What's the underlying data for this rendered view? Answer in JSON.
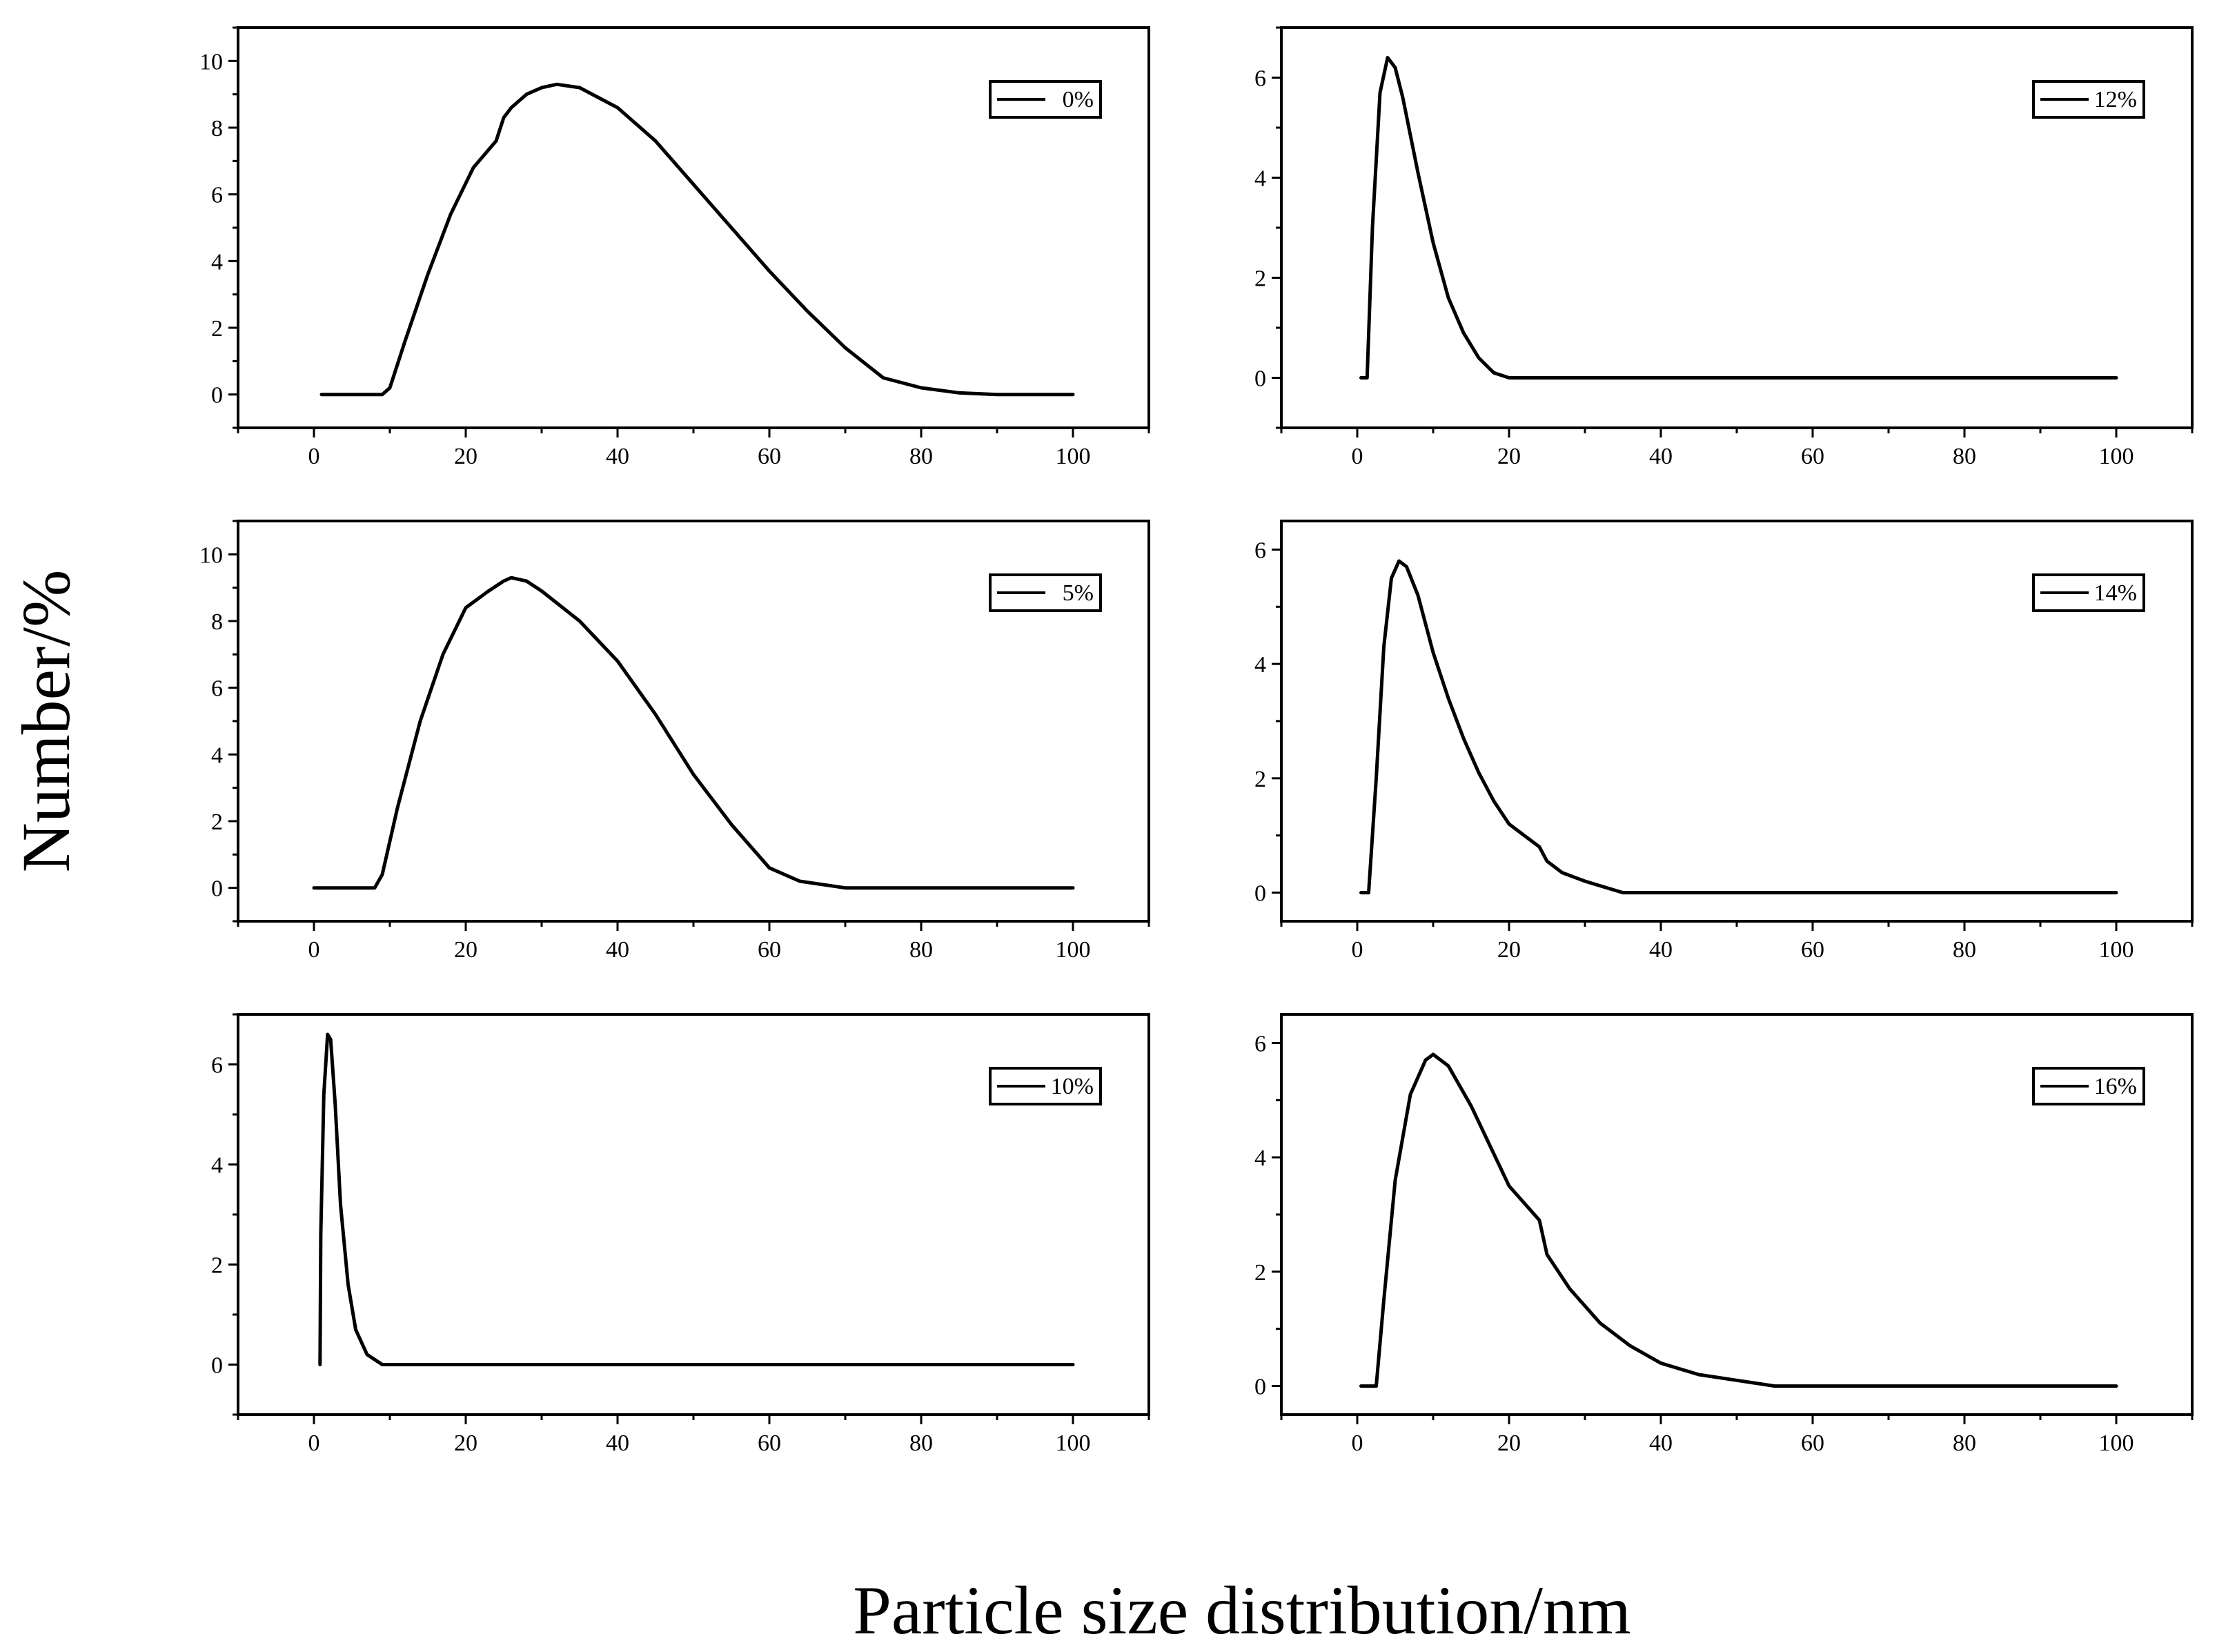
{
  "figure": {
    "ylabel": "Number/%",
    "xlabel": "Particle size distribution/nm"
  },
  "chart_data": [
    {
      "type": "line",
      "panel": "top-left",
      "legend": "0%",
      "legend_position": "top-right",
      "xlim": [
        -10,
        110
      ],
      "ylim": [
        -1,
        11
      ],
      "xticks": [
        0,
        20,
        40,
        60,
        80,
        100
      ],
      "yticks": [
        0,
        2,
        4,
        6,
        8,
        10
      ],
      "series": [
        {
          "name": "0%",
          "x": [
            1,
            9,
            10,
            12,
            15,
            18,
            21,
            24,
            25,
            26,
            28,
            30,
            32,
            35,
            40,
            45,
            50,
            55,
            60,
            65,
            70,
            75,
            80,
            85,
            90,
            100
          ],
          "values": [
            0,
            0,
            0.2,
            1.6,
            3.6,
            5.4,
            6.8,
            7.6,
            8.3,
            8.6,
            9.0,
            9.2,
            9.3,
            9.2,
            8.6,
            7.6,
            6.3,
            5.0,
            3.7,
            2.5,
            1.4,
            0.5,
            0.2,
            0.05,
            0,
            0
          ]
        }
      ]
    },
    {
      "type": "line",
      "panel": "top-right",
      "legend": "12%",
      "legend_position": "top-right",
      "xlim": [
        -10,
        110
      ],
      "ylim": [
        -1,
        7
      ],
      "xticks": [
        0,
        20,
        40,
        60,
        80,
        100
      ],
      "yticks": [
        0,
        2,
        4,
        6
      ],
      "series": [
        {
          "name": "12%",
          "x": [
            0.5,
            1.3,
            2,
            3,
            4,
            5,
            6,
            8,
            10,
            12,
            14,
            16,
            18,
            20,
            100
          ],
          "values": [
            0,
            0,
            3.0,
            5.7,
            6.4,
            6.2,
            5.6,
            4.1,
            2.7,
            1.6,
            0.9,
            0.4,
            0.1,
            0,
            0
          ]
        }
      ]
    },
    {
      "type": "line",
      "panel": "middle-left",
      "legend": "5%",
      "legend_position": "top-right",
      "xlim": [
        -10,
        110
      ],
      "ylim": [
        -1,
        11
      ],
      "xticks": [
        0,
        20,
        40,
        60,
        80,
        100
      ],
      "yticks": [
        0,
        2,
        4,
        6,
        8,
        10
      ],
      "series": [
        {
          "name": "5%",
          "x": [
            0,
            8,
            9,
            11,
            14,
            17,
            20,
            23,
            25,
            26,
            28,
            30,
            35,
            40,
            45,
            50,
            55,
            60,
            64,
            70,
            100
          ],
          "values": [
            0,
            0,
            0.4,
            2.4,
            5.0,
            7.0,
            8.4,
            8.9,
            9.2,
            9.3,
            9.2,
            8.9,
            8.0,
            6.8,
            5.2,
            3.4,
            1.9,
            0.6,
            0.2,
            0,
            0
          ]
        }
      ]
    },
    {
      "type": "line",
      "panel": "middle-right",
      "legend": "14%",
      "legend_position": "top-right",
      "xlim": [
        -10,
        110
      ],
      "ylim": [
        -0.5,
        6.5
      ],
      "xticks": [
        0,
        20,
        40,
        60,
        80,
        100
      ],
      "yticks": [
        0,
        2,
        4,
        6
      ],
      "series": [
        {
          "name": "14%",
          "x": [
            0.5,
            1.5,
            2.5,
            3.5,
            4.5,
            5.5,
            6.5,
            8,
            10,
            12,
            14,
            16,
            18,
            20,
            22,
            24,
            25,
            27,
            30,
            35,
            100
          ],
          "values": [
            0,
            0,
            2.0,
            4.3,
            5.5,
            5.8,
            5.7,
            5.2,
            4.2,
            3.4,
            2.7,
            2.1,
            1.6,
            1.2,
            1.0,
            0.8,
            0.55,
            0.35,
            0.2,
            0,
            0
          ]
        }
      ]
    },
    {
      "type": "line",
      "panel": "bottom-left",
      "legend": "10%",
      "legend_position": "top-right",
      "xlim": [
        -10,
        110
      ],
      "ylim": [
        -1,
        7
      ],
      "xticks": [
        0,
        20,
        40,
        60,
        80,
        100
      ],
      "yticks": [
        0,
        2,
        4,
        6
      ],
      "series": [
        {
          "name": "10%",
          "x": [
            0.8,
            0.9,
            1.3,
            1.8,
            2.2,
            2.8,
            3.5,
            4.5,
            5.5,
            7,
            9,
            100
          ],
          "values": [
            0,
            2.6,
            5.4,
            6.6,
            6.5,
            5.2,
            3.2,
            1.6,
            0.7,
            0.2,
            0,
            0
          ]
        }
      ]
    },
    {
      "type": "line",
      "panel": "bottom-right",
      "legend": "16%",
      "legend_position": "top-right",
      "xlim": [
        -10,
        110
      ],
      "ylim": [
        -0.5,
        6.5
      ],
      "xticks": [
        0,
        20,
        40,
        60,
        80,
        100
      ],
      "yticks": [
        0,
        2,
        4,
        6
      ],
      "series": [
        {
          "name": "16%",
          "x": [
            0.5,
            2.5,
            3.5,
            5,
            7,
            9,
            10,
            12,
            15,
            20,
            24,
            25,
            28,
            32,
            36,
            40,
            45,
            50,
            55,
            100
          ],
          "values": [
            0,
            0,
            1.5,
            3.6,
            5.1,
            5.7,
            5.8,
            5.6,
            4.9,
            3.5,
            2.9,
            2.3,
            1.7,
            1.1,
            0.7,
            0.4,
            0.2,
            0.1,
            0,
            0
          ]
        }
      ]
    }
  ]
}
